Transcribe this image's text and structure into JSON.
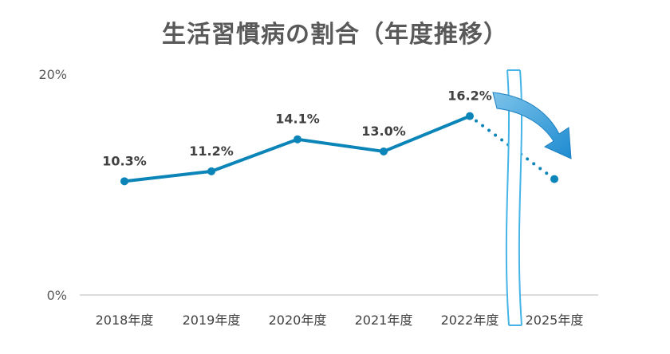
{
  "chart_data": {
    "type": "line",
    "title": "生活習慣病の割合（年度推移）",
    "categories": [
      "2018年度",
      "2019年度",
      "2020年度",
      "2021年度",
      "2022年度",
      "2025年度"
    ],
    "values": [
      10.3,
      11.2,
      14.1,
      13.0,
      16.2,
      10.5
    ],
    "data_labels": [
      "10.3%",
      "11.2%",
      "14.1%",
      "13.0%",
      "16.2%",
      ""
    ],
    "y_ticks": [
      "0%",
      "20%"
    ],
    "ylim": [
      0,
      20
    ],
    "grid": false,
    "projected_from_index": 4,
    "axis_break_after": "2022年度",
    "trend_arrow": "down",
    "colors": {
      "line": "#0b84b8",
      "arrow": "#2f9fd8",
      "axis": "#d0d0d0",
      "text": "#404040"
    }
  }
}
